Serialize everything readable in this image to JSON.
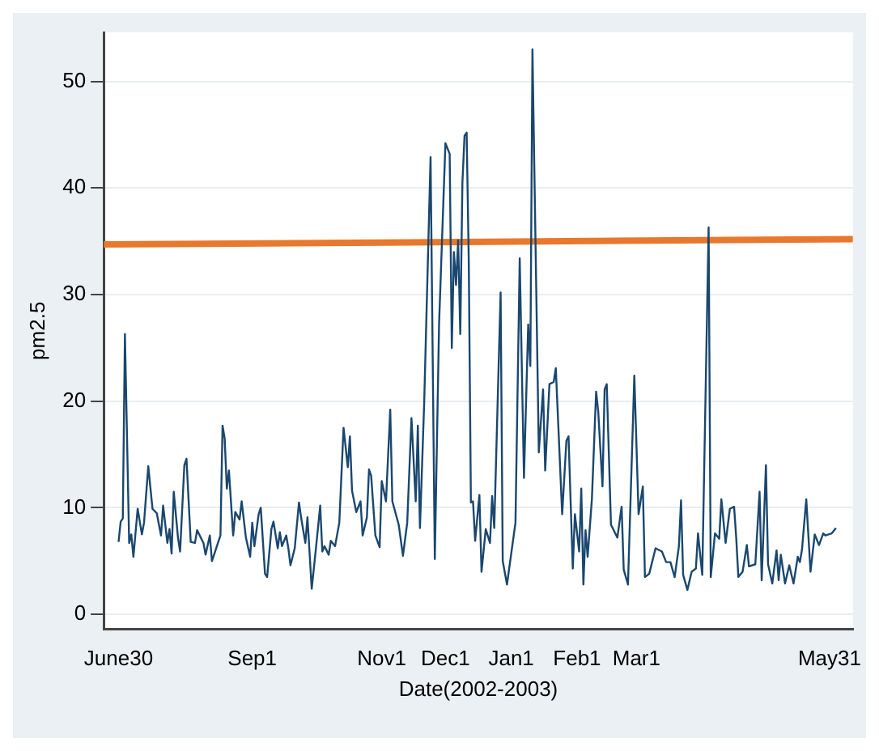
{
  "chart_data": {
    "type": "line",
    "xlabel": "Date(2002-2003)",
    "ylabel": "pm2.5",
    "xlim": [
      "2002-06-23",
      "2003-06-11"
    ],
    "ylim": [
      -1.4,
      54.6
    ],
    "xticks": [
      {
        "value": "2002-06-30",
        "label": "June30"
      },
      {
        "value": "2002-09-01",
        "label": "Sep1"
      },
      {
        "value": "2002-11-01",
        "label": "Nov1"
      },
      {
        "value": "2002-12-01",
        "label": "Dec1"
      },
      {
        "value": "2003-01-01",
        "label": "Jan1"
      },
      {
        "value": "2003-02-01",
        "label": "Feb1"
      },
      {
        "value": "2003-03-01",
        "label": "Mar1"
      },
      {
        "value": "2003-05-31",
        "label": "May31"
      }
    ],
    "yticks": [
      0,
      10,
      20,
      30,
      40,
      50
    ],
    "grid": "y",
    "legend": false,
    "marker": "none",
    "line_style": "solid",
    "series": [
      {
        "color": "#1a476f",
        "x": [
          "2002-06-30",
          "2002-07-01",
          "2002-07-02",
          "2002-07-03",
          "2002-07-05",
          "2002-07-06",
          "2002-07-07",
          "2002-07-09",
          "2002-07-11",
          "2002-07-12",
          "2002-07-14",
          "2002-07-16",
          "2002-07-18",
          "2002-07-20",
          "2002-07-21",
          "2002-07-23",
          "2002-07-24",
          "2002-07-25",
          "2002-07-26",
          "2002-07-28",
          "2002-07-29",
          "2002-07-31",
          "2002-08-01",
          "2002-08-03",
          "2002-08-05",
          "2002-08-06",
          "2002-08-09",
          "2002-08-10",
          "2002-08-12",
          "2002-08-13",
          "2002-08-17",
          "2002-08-18",
          "2002-08-19",
          "2002-08-20",
          "2002-08-21",
          "2002-08-23",
          "2002-08-24",
          "2002-08-26",
          "2002-08-27",
          "2002-08-29",
          "2002-08-31",
          "2002-09-01",
          "2002-09-02",
          "2002-09-04",
          "2002-09-05",
          "2002-09-07",
          "2002-09-08",
          "2002-09-10",
          "2002-09-11",
          "2002-09-13",
          "2002-09-14",
          "2002-09-15",
          "2002-09-17",
          "2002-09-18",
          "2002-09-19",
          "2002-09-21",
          "2002-09-23",
          "2002-09-24",
          "2002-09-26",
          "2002-09-27",
          "2002-09-29",
          "2002-10-01",
          "2002-10-03",
          "2002-10-04",
          "2002-10-05",
          "2002-10-07",
          "2002-10-08",
          "2002-10-10",
          "2002-10-12",
          "2002-10-14",
          "2002-10-16",
          "2002-10-17",
          "2002-10-18",
          "2002-10-20",
          "2002-10-22",
          "2002-10-23",
          "2002-10-25",
          "2002-10-26",
          "2002-10-27",
          "2002-10-29",
          "2002-10-31",
          "2002-11-01",
          "2002-11-03",
          "2002-11-05",
          "2002-11-06",
          "2002-11-09",
          "2002-11-11",
          "2002-11-13",
          "2002-11-15",
          "2002-11-17",
          "2002-11-18",
          "2002-11-19",
          "2002-11-21",
          "2002-11-24",
          "2002-11-26",
          "2002-11-28",
          "2002-12-01",
          "2002-12-03",
          "2002-12-04",
          "2002-12-05",
          "2002-12-06",
          "2002-12-07",
          "2002-12-08",
          "2002-12-09",
          "2002-12-10",
          "2002-12-11",
          "2002-12-12",
          "2002-12-13",
          "2002-12-14",
          "2002-12-15",
          "2002-12-17",
          "2002-12-18",
          "2002-12-20",
          "2002-12-22",
          "2002-12-23",
          "2002-12-24",
          "2002-12-27",
          "2002-12-28",
          "2002-12-30",
          "2003-01-03",
          "2003-01-05",
          "2003-01-07",
          "2003-01-09",
          "2003-01-10",
          "2003-01-11",
          "2003-01-14",
          "2003-01-16",
          "2003-01-17",
          "2003-01-19",
          "2003-01-21",
          "2003-01-22",
          "2003-01-25",
          "2003-01-27",
          "2003-01-28",
          "2003-01-30",
          "2003-01-31",
          "2003-02-02",
          "2003-02-03",
          "2003-02-04",
          "2003-02-05",
          "2003-02-06",
          "2003-02-08",
          "2003-02-10",
          "2003-02-11",
          "2003-02-13",
          "2003-02-14",
          "2003-02-15",
          "2003-02-17",
          "2003-02-20",
          "2003-02-22",
          "2003-02-23",
          "2003-02-25",
          "2003-02-28",
          "2003-03-02",
          "2003-03-04",
          "2003-03-05",
          "2003-03-07",
          "2003-03-10",
          "2003-03-13",
          "2003-03-15",
          "2003-03-17",
          "2003-03-19",
          "2003-03-21",
          "2003-03-22",
          "2003-03-23",
          "2003-03-25",
          "2003-03-27",
          "2003-03-29",
          "2003-03-30",
          "2003-04-01",
          "2003-04-04",
          "2003-04-05",
          "2003-04-07",
          "2003-04-09",
          "2003-04-10",
          "2003-04-12",
          "2003-04-14",
          "2003-04-16",
          "2003-04-17",
          "2003-04-18",
          "2003-04-20",
          "2003-04-22",
          "2003-04-23",
          "2003-04-26",
          "2003-04-28",
          "2003-04-29",
          "2003-05-01",
          "2003-05-02",
          "2003-05-04",
          "2003-05-06",
          "2003-05-07",
          "2003-05-08",
          "2003-05-10",
          "2003-05-12",
          "2003-05-14",
          "2003-05-16",
          "2003-05-17",
          "2003-05-18",
          "2003-05-20",
          "2003-05-22",
          "2003-05-24",
          "2003-05-26",
          "2003-05-28",
          "2003-05-29",
          "2003-06-01",
          "2003-06-03"
        ],
        "values": [
          6.8,
          8.7,
          9,
          26.3,
          6.7,
          7.5,
          5.4,
          9.9,
          7.5,
          8.6,
          13.9,
          9.9,
          9.5,
          7.4,
          10.2,
          6.7,
          8,
          5.7,
          11.5,
          7.2,
          5.9,
          14,
          14.6,
          6.8,
          6.7,
          7.9,
          6.7,
          5.6,
          7.4,
          5,
          7.4,
          17.7,
          16.5,
          11.8,
          13.5,
          7.4,
          9.6,
          8.9,
          10.6,
          7.2,
          5.4,
          8.6,
          6.4,
          9.4,
          10,
          3.8,
          3.5,
          8,
          8.7,
          6.2,
          7.7,
          6.4,
          7.4,
          6.2,
          4.6,
          6.2,
          10.5,
          9.1,
          6.7,
          9.1,
          2.4,
          6.2,
          10.2,
          5.9,
          6.4,
          5.6,
          6.9,
          6.4,
          8.6,
          17.5,
          13.8,
          16.7,
          11.6,
          9.6,
          10.6,
          7.4,
          9.1,
          13.6,
          13,
          7.4,
          6.3,
          12.5,
          10.6,
          19.2,
          10.6,
          8.4,
          5.5,
          8.6,
          18.4,
          10.6,
          17.7,
          8.1,
          19.9,
          42.9,
          5.2,
          27.2,
          44.2,
          43.2,
          25,
          34,
          30.9,
          35.1,
          26.3,
          40.5,
          44.9,
          45.2,
          33.1,
          10.5,
          10.6,
          6.9,
          11.2,
          4,
          8,
          6.7,
          11.1,
          8.1,
          30.2,
          5,
          2.8,
          8.6,
          33.4,
          12.8,
          27.2,
          23.3,
          53,
          15.2,
          21.1,
          13.5,
          21.6,
          21.8,
          23.1,
          9.4,
          16.3,
          16.7,
          4.3,
          9.4,
          5.9,
          11.8,
          2.8,
          7.9,
          5.4,
          10.8,
          20.9,
          19,
          12,
          21.1,
          21.6,
          8.4,
          7.2,
          10.1,
          4.2,
          2.8,
          22.4,
          9.4,
          12,
          3.5,
          3.8,
          6.2,
          5.9,
          4.9,
          4.9,
          3.5,
          6.4,
          10.7,
          3.7,
          2.3,
          4,
          4.3,
          7.6,
          3.7,
          36.3,
          3.5,
          7.6,
          7.1,
          10.8,
          6.7,
          9.9,
          10.1,
          7.2,
          3.5,
          4,
          6.5,
          4.5,
          4.7,
          11.5,
          3.2,
          14,
          4.7,
          2.9,
          6,
          3.2,
          5.6,
          2.9,
          4.6,
          2.9,
          5.4,
          4.9,
          6.1,
          10.8,
          4,
          7.5,
          6.5,
          7.6,
          7.4,
          7.6,
          8.1
        ]
      },
      {
        "color": "#e8782d",
        "x": [
          "2002-06-23",
          "2003-06-11"
        ],
        "values": [
          34.7,
          35.2
        ]
      }
    ]
  }
}
